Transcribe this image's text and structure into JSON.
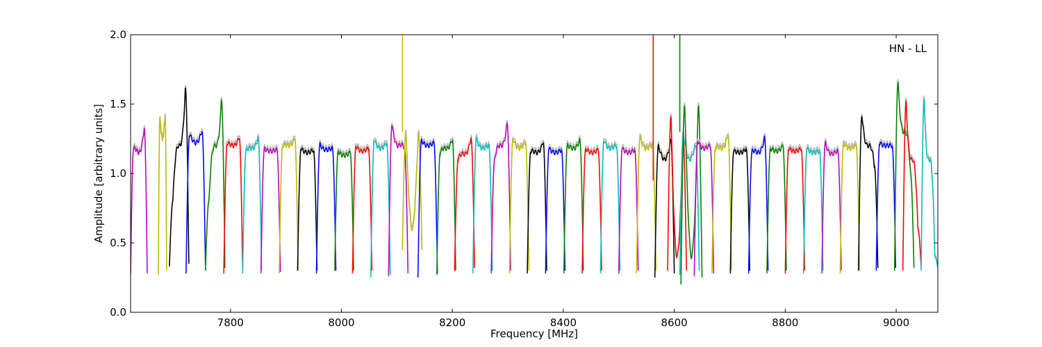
{
  "chart_data": {
    "type": "line",
    "title": "",
    "annotation": "HN - LL",
    "xlabel": "Frequency [MHz]",
    "ylabel": "Amplitude [arbitrary units]",
    "xlim": [
      7620,
      9075
    ],
    "ylim": [
      0.0,
      2.0
    ],
    "xticks": [
      {
        "value": 7800,
        "label": "7800"
      },
      {
        "value": 8000,
        "label": "8000"
      },
      {
        "value": 8200,
        "label": "8200"
      },
      {
        "value": 8400,
        "label": "8400"
      },
      {
        "value": 8600,
        "label": "8600"
      },
      {
        "value": 8800,
        "label": "8800"
      },
      {
        "value": 9000,
        "label": "9000"
      }
    ],
    "yticks": [
      {
        "value": 0.0,
        "label": "0.0"
      },
      {
        "value": 0.5,
        "label": "0.5"
      },
      {
        "value": 1.0,
        "label": "1.0"
      },
      {
        "value": 1.5,
        "label": "1.5"
      },
      {
        "value": 2.0,
        "label": "2.0"
      }
    ],
    "grid": false,
    "background_series_color": "#bbbbbb",
    "bands": [
      {
        "x0": 7620,
        "x1": 7650,
        "color": "#bf00bf",
        "edge_low": 0.27,
        "edge_high": 0.28,
        "peak_l": 1.18,
        "peak_r": 1.33,
        "mid": 1.15
      },
      {
        "x0": 7670,
        "x1": 7685,
        "color": "#bfbf00",
        "edge_low": 0.27,
        "edge_high": 0.3,
        "peak_l": 1.4,
        "peak_r": 1.42,
        "mid": 1.25
      },
      {
        "x0": 7690,
        "x1": 7725,
        "color": "#000000",
        "edge_low": 0.33,
        "edge_high": 0.35,
        "peak_l": 0.8,
        "peak_r": 1.62,
        "mid": 1.2
      },
      {
        "x0": 7720,
        "x1": 7755,
        "color": "#0000ff",
        "edge_low": 0.28,
        "edge_high": 0.3,
        "peak_l": 1.28,
        "peak_r": 1.31,
        "mid": 1.22
      },
      {
        "x0": 7755,
        "x1": 7790,
        "color": "#008000",
        "edge_low": 0.3,
        "edge_high": 0.32,
        "peak_l": 0.8,
        "peak_r": 1.53,
        "mid": 1.2
      },
      {
        "x0": 7788,
        "x1": 7822,
        "color": "#ff0000",
        "edge_low": 0.28,
        "edge_high": 0.3,
        "peak_l": 1.22,
        "peak_r": 1.26,
        "mid": 1.2
      },
      {
        "x0": 7822,
        "x1": 7856,
        "color": "#00bfbf",
        "edge_low": 0.28,
        "edge_high": 0.3,
        "peak_l": 1.16,
        "peak_r": 1.26,
        "mid": 1.18
      },
      {
        "x0": 7855,
        "x1": 7890,
        "color": "#bf00bf",
        "edge_low": 0.28,
        "edge_high": 0.29,
        "peak_l": 1.18,
        "peak_r": 1.17,
        "mid": 1.16
      },
      {
        "x0": 7888,
        "x1": 7922,
        "color": "#bfbf00",
        "edge_low": 0.28,
        "edge_high": 0.3,
        "peak_l": 1.2,
        "peak_r": 1.25,
        "mid": 1.2
      },
      {
        "x0": 7921,
        "x1": 7956,
        "color": "#000000",
        "edge_low": 0.3,
        "edge_high": 0.3,
        "peak_l": 1.18,
        "peak_r": 1.17,
        "mid": 1.15
      },
      {
        "x0": 7955,
        "x1": 7990,
        "color": "#0000ff",
        "edge_low": 0.28,
        "edge_high": 0.3,
        "peak_l": 1.21,
        "peak_r": 1.18,
        "mid": 1.17
      },
      {
        "x0": 7988,
        "x1": 8022,
        "color": "#008000",
        "edge_low": 0.3,
        "edge_high": 0.3,
        "peak_l": 1.16,
        "peak_r": 1.15,
        "mid": 1.13
      },
      {
        "x0": 8020,
        "x1": 8055,
        "color": "#ff0000",
        "edge_low": 0.28,
        "edge_high": 0.3,
        "peak_l": 1.2,
        "peak_r": 1.18,
        "mid": 1.16
      },
      {
        "x0": 8053,
        "x1": 8088,
        "color": "#00bfbf",
        "edge_low": 0.25,
        "edge_high": 0.27,
        "peak_l": 1.24,
        "peak_r": 1.22,
        "mid": 1.18
      },
      {
        "x0": 8085,
        "x1": 8120,
        "color": "#bf00bf",
        "edge_low": 0.26,
        "edge_high": 0.28,
        "peak_l": 1.35,
        "peak_r": 1.18,
        "mid": 1.2
      },
      {
        "x0": 8110,
        "x1": 8145,
        "color": "#bfbf00",
        "edge_low": 0.45,
        "edge_high": 0.45,
        "peak_l": 1.3,
        "peak_r": 1.3,
        "mid": 0.6
      },
      {
        "x0": 8138,
        "x1": 8173,
        "color": "#0000ff",
        "edge_low": 0.25,
        "edge_high": 0.28,
        "peak_l": 1.24,
        "peak_r": 1.22,
        "mid": 1.2
      },
      {
        "x0": 8172,
        "x1": 8206,
        "color": "#008000",
        "edge_low": 0.27,
        "edge_high": 0.3,
        "peak_l": 1.15,
        "peak_r": 1.25,
        "mid": 1.18
      },
      {
        "x0": 8204,
        "x1": 8240,
        "color": "#ff0000",
        "edge_low": 0.3,
        "edge_high": 0.32,
        "peak_l": 1.1,
        "peak_r": 1.26,
        "mid": 1.14
      },
      {
        "x0": 8237,
        "x1": 8272,
        "color": "#00bfbf",
        "edge_low": 0.28,
        "edge_high": 0.3,
        "peak_l": 1.25,
        "peak_r": 1.2,
        "mid": 1.18
      },
      {
        "x0": 8270,
        "x1": 8305,
        "color": "#bf00bf",
        "edge_low": 0.28,
        "edge_high": 0.3,
        "peak_l": 1.1,
        "peak_r": 1.36,
        "mid": 1.2
      },
      {
        "x0": 8303,
        "x1": 8338,
        "color": "#bfbf00",
        "edge_low": 0.28,
        "edge_high": 0.3,
        "peak_l": 1.25,
        "peak_r": 1.22,
        "mid": 1.18
      },
      {
        "x0": 8335,
        "x1": 8370,
        "color": "#000000",
        "edge_low": 0.28,
        "edge_high": 0.3,
        "peak_l": 1.16,
        "peak_r": 1.23,
        "mid": 1.15
      },
      {
        "x0": 8368,
        "x1": 8403,
        "color": "#0000ff",
        "edge_low": 0.28,
        "edge_high": 0.3,
        "peak_l": 1.18,
        "peak_r": 1.17,
        "mid": 1.15
      },
      {
        "x0": 8401,
        "x1": 8436,
        "color": "#008000",
        "edge_low": 0.28,
        "edge_high": 0.3,
        "peak_l": 1.2,
        "peak_r": 1.24,
        "mid": 1.18
      },
      {
        "x0": 8434,
        "x1": 8469,
        "color": "#ff0000",
        "edge_low": 0.28,
        "edge_high": 0.3,
        "peak_l": 1.18,
        "peak_r": 1.17,
        "mid": 1.15
      },
      {
        "x0": 8467,
        "x1": 8502,
        "color": "#00bfbf",
        "edge_low": 0.28,
        "edge_high": 0.3,
        "peak_l": 1.24,
        "peak_r": 1.2,
        "mid": 1.18
      },
      {
        "x0": 8500,
        "x1": 8535,
        "color": "#bf00bf",
        "edge_low": 0.28,
        "edge_high": 0.3,
        "peak_l": 1.18,
        "peak_r": 1.17,
        "mid": 1.15
      },
      {
        "x0": 8532,
        "x1": 8567,
        "color": "#bfbf00",
        "edge_low": 0.28,
        "edge_high": 0.3,
        "peak_l": 1.26,
        "peak_r": 1.2,
        "mid": 1.18
      },
      {
        "x0": 8565,
        "x1": 8600,
        "color": "#000000",
        "edge_low": 0.25,
        "edge_high": 0.28,
        "peak_l": 1.2,
        "peak_r": 1.24,
        "mid": 1.1
      },
      {
        "x0": 8588,
        "x1": 8622,
        "color": "#ff0000",
        "edge_low": 0.3,
        "edge_high": 0.3,
        "peak_l": 1.42,
        "peak_r": 1.26,
        "mid": 0.4
      },
      {
        "x0": 8610,
        "x1": 8645,
        "color": "#00bfbf",
        "edge_low": 0.27,
        "edge_high": 0.3,
        "peak_l": 1.3,
        "peak_r": 1.2,
        "mid": 1.1
      },
      {
        "x0": 8612,
        "x1": 8650,
        "color": "#008000",
        "edge_low": 0.2,
        "edge_high": 0.25,
        "peak_l": 1.5,
        "peak_r": 1.5,
        "mid": 0.4
      },
      {
        "x0": 8636,
        "x1": 8671,
        "color": "#bf00bf",
        "edge_low": 0.26,
        "edge_high": 0.28,
        "peak_l": 1.24,
        "peak_r": 1.2,
        "mid": 1.18
      },
      {
        "x0": 8668,
        "x1": 8703,
        "color": "#bfbf00",
        "edge_low": 0.28,
        "edge_high": 0.3,
        "peak_l": 1.18,
        "peak_r": 1.28,
        "mid": 1.18
      },
      {
        "x0": 8701,
        "x1": 8736,
        "color": "#000000",
        "edge_low": 0.28,
        "edge_high": 0.3,
        "peak_l": 1.16,
        "peak_r": 1.18,
        "mid": 1.15
      },
      {
        "x0": 8734,
        "x1": 8769,
        "color": "#0000ff",
        "edge_low": 0.28,
        "edge_high": 0.3,
        "peak_l": 1.16,
        "peak_r": 1.26,
        "mid": 1.15
      },
      {
        "x0": 8767,
        "x1": 8802,
        "color": "#008000",
        "edge_low": 0.28,
        "edge_high": 0.3,
        "peak_l": 1.18,
        "peak_r": 1.2,
        "mid": 1.16
      },
      {
        "x0": 8800,
        "x1": 8835,
        "color": "#ff0000",
        "edge_low": 0.28,
        "edge_high": 0.3,
        "peak_l": 1.18,
        "peak_r": 1.18,
        "mid": 1.16
      },
      {
        "x0": 8833,
        "x1": 8868,
        "color": "#00bfbf",
        "edge_low": 0.28,
        "edge_high": 0.3,
        "peak_l": 1.18,
        "peak_r": 1.16,
        "mid": 1.15
      },
      {
        "x0": 8866,
        "x1": 8901,
        "color": "#bf00bf",
        "edge_low": 0.28,
        "edge_high": 0.3,
        "peak_l": 1.22,
        "peak_r": 1.16,
        "mid": 1.14
      },
      {
        "x0": 8899,
        "x1": 8934,
        "color": "#bfbf00",
        "edge_low": 0.28,
        "edge_high": 0.3,
        "peak_l": 1.22,
        "peak_r": 1.2,
        "mid": 1.18
      },
      {
        "x0": 8932,
        "x1": 8967,
        "color": "#000000",
        "edge_low": 0.3,
        "edge_high": 0.32,
        "peak_l": 1.42,
        "peak_r": 1.05,
        "mid": 1.2
      },
      {
        "x0": 8964,
        "x1": 8999,
        "color": "#0000ff",
        "edge_low": 0.3,
        "edge_high": 0.32,
        "peak_l": 1.22,
        "peak_r": 1.2,
        "mid": 1.2
      },
      {
        "x0": 8997,
        "x1": 9032,
        "color": "#008000",
        "edge_low": 0.3,
        "edge_high": 0.32,
        "peak_l": 1.66,
        "peak_r": 1.0,
        "mid": 1.3
      },
      {
        "x0": 9012,
        "x1": 9045,
        "color": "#ff0000",
        "edge_low": 0.3,
        "edge_high": 0.32,
        "peak_l": 1.53,
        "peak_r": 0.6,
        "mid": 1.1
      },
      {
        "x0": 9045,
        "x1": 9075,
        "color": "#00bfbf",
        "edge_low": 0.3,
        "edge_high": 0.32,
        "peak_l": 1.55,
        "peak_r": 0.4,
        "mid": 1.1
      }
    ],
    "spikes": [
      {
        "x": 8110,
        "y0": 1.3,
        "y1": 2.0,
        "color": "#bfbf00"
      },
      {
        "x": 8562,
        "y0": 0.95,
        "y1": 2.0,
        "color": "#ff0000"
      },
      {
        "x": 8610,
        "y0": 1.3,
        "y1": 2.0,
        "color": "#008000"
      }
    ]
  }
}
